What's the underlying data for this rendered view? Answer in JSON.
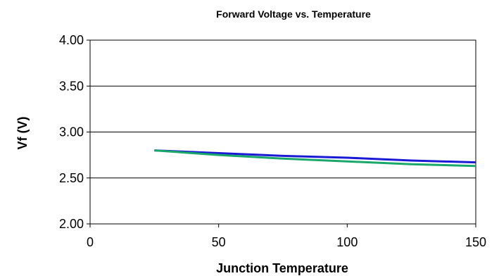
{
  "chart_data": {
    "type": "line",
    "title": "Forward Voltage vs. Temperature",
    "xlabel": "Junction Temperature",
    "ylabel": "Vf (V)",
    "xlim": [
      0,
      150
    ],
    "ylim": [
      2.0,
      4.0
    ],
    "x_ticks": [
      "0",
      "50",
      "100",
      "150"
    ],
    "y_ticks": [
      "2.00",
      "2.50",
      "3.00",
      "3.50",
      "4.00"
    ],
    "grid": "horizontal",
    "legend": "none",
    "series": [
      {
        "color": "#1a1ad6",
        "x": [
          25,
          50,
          75,
          100,
          125,
          150
        ],
        "y": [
          2.8,
          2.77,
          2.74,
          2.72,
          2.69,
          2.67
        ]
      },
      {
        "color": "#1aa86a",
        "x": [
          25,
          50,
          75,
          100,
          125,
          150
        ],
        "y": [
          2.8,
          2.75,
          2.71,
          2.68,
          2.65,
          2.63
        ]
      }
    ]
  }
}
